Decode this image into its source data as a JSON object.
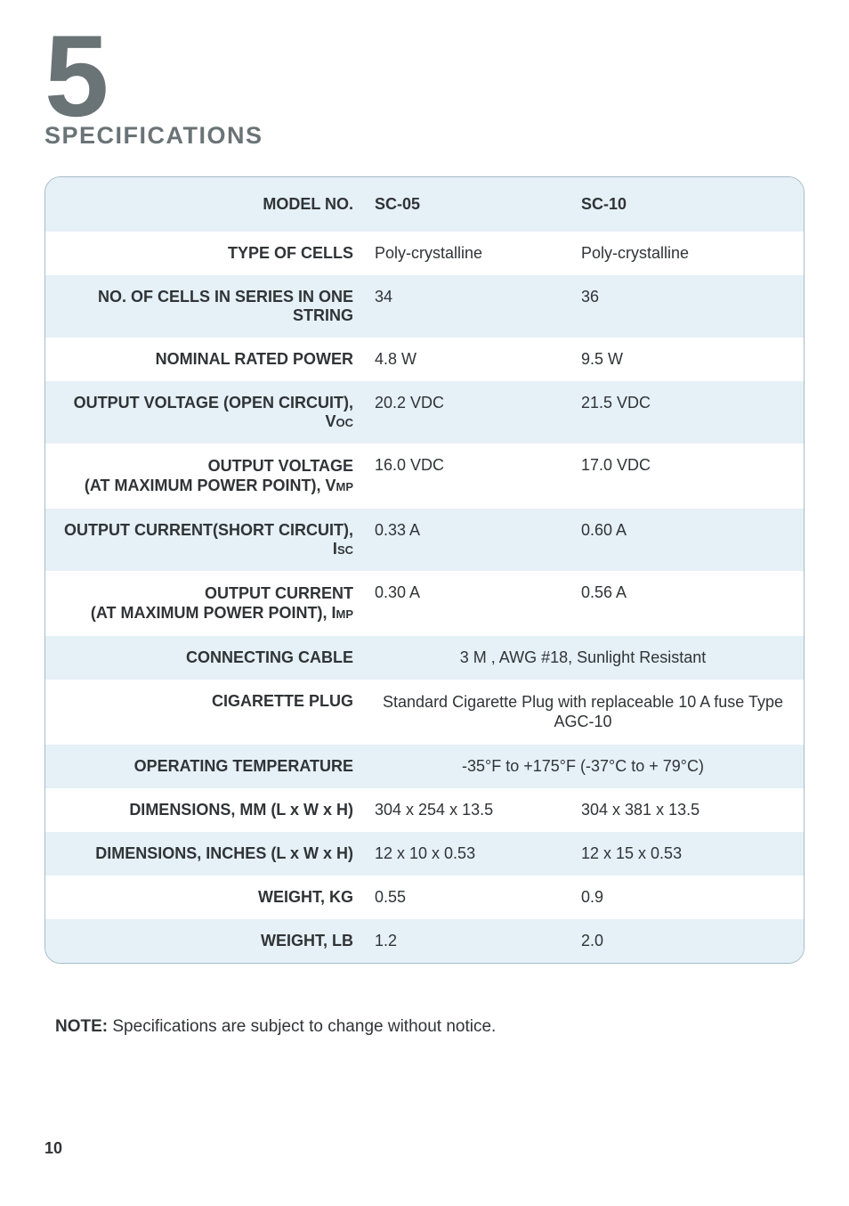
{
  "chapter_number": "5",
  "section_title": "SPECIFICATIONS",
  "columns_header_label": "MODEL NO.",
  "models": [
    "SC-05",
    "SC-10"
  ],
  "rows": [
    {
      "label_parts": [
        "TYPE OF CELLS"
      ],
      "values": [
        "Poly-crystalline",
        "Poly-crystalline"
      ],
      "merged": false
    },
    {
      "label_parts": [
        "NO. OF CELLS IN SERIES IN ONE STRING"
      ],
      "values": [
        "34",
        "36"
      ],
      "merged": false
    },
    {
      "label_parts": [
        "NOMINAL RATED POWER"
      ],
      "values": [
        "4.8 W",
        "9.5 W"
      ],
      "merged": false
    },
    {
      "label_parts": [
        "OUTPUT VOLTAGE (OPEN CIRCUIT), V",
        "OC"
      ],
      "values": [
        "20.2 VDC",
        "21.5 VDC"
      ],
      "merged": false
    },
    {
      "label_parts": [
        "OUTPUT VOLTAGE",
        "(AT MAXIMUM POWER POINT), V",
        "MP"
      ],
      "values": [
        "16.0 VDC",
        "17.0 VDC"
      ],
      "merged": false,
      "multiline": true
    },
    {
      "label_parts": [
        "OUTPUT CURRENT(SHORT CIRCUIT), I",
        "SC"
      ],
      "values": [
        "0.33 A",
        "0.60 A"
      ],
      "merged": false
    },
    {
      "label_parts": [
        "OUTPUT CURRENT",
        "(AT MAXIMUM POWER POINT), I",
        "MP"
      ],
      "values": [
        "0.30 A",
        "0.56 A"
      ],
      "merged": false,
      "multiline": true
    },
    {
      "label_parts": [
        "CONNECTING CABLE"
      ],
      "values": [
        "3 M , AWG #18, Sunlight Resistant"
      ],
      "merged": true
    },
    {
      "label_parts": [
        "CIGARETTE PLUG"
      ],
      "values": [
        "Standard Cigarette Plug with replaceable 10 A fuse Type AGC-10"
      ],
      "merged": true,
      "value_multiline": true
    },
    {
      "label_parts": [
        "OPERATING TEMPERATURE"
      ],
      "values": [
        "-35°F to +175°F  (-37°C to + 79°C)"
      ],
      "merged": true
    },
    {
      "label_parts": [
        "DIMENSIONS, MM  (L x W x H)"
      ],
      "values": [
        "304 x 254 x 13.5",
        "304 x 381 x 13.5"
      ],
      "merged": false
    },
    {
      "label_parts": [
        "DIMENSIONS, INCHES (L x W x H)"
      ],
      "values": [
        "12 x 10 x 0.53",
        "12 x 15 x 0.53"
      ],
      "merged": false
    },
    {
      "label_parts": [
        "WEIGHT, KG"
      ],
      "values": [
        "0.55",
        "0.9"
      ],
      "merged": false
    },
    {
      "label_parts": [
        "WEIGHT, LB"
      ],
      "values": [
        "1.2",
        "2.0"
      ],
      "merged": false
    }
  ],
  "note_label": "NOTE:",
  "note_text": " Specifications are subject to change without notice.",
  "page_number": "10",
  "colors": {
    "chapter_color": "#6a7376",
    "text_color": "#303436",
    "table_border": "#a6bcc6",
    "alt_row_bg": "#e5f0f7",
    "page_bg": "#ffffff"
  },
  "typography": {
    "chapter_number_fontsize": 130,
    "section_title_fontsize": 27,
    "body_fontsize": 18,
    "sub_fontsize": 13,
    "note_fontsize": 19
  }
}
